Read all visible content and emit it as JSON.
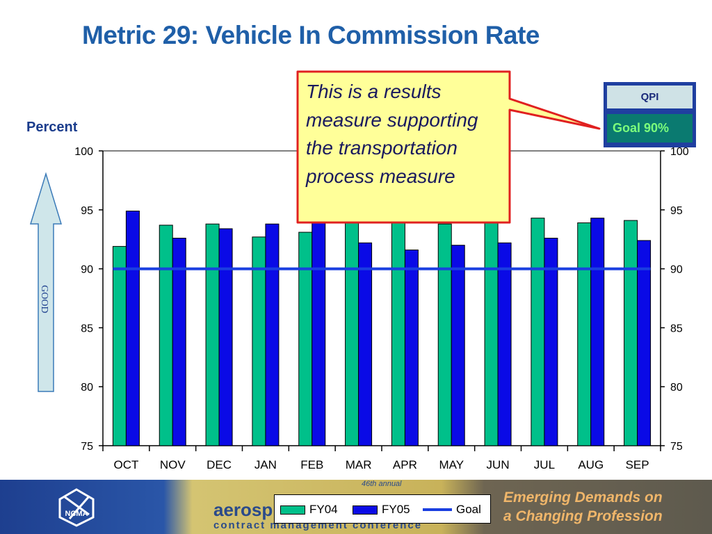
{
  "slide": {
    "title": "Metric 29:  Vehicle In Commission Rate",
    "callout": "This is a results measure supporting the transportation process measure",
    "qpi_label": "QPI",
    "goal_label": "Goal 90%",
    "good_label": "GOOD",
    "footer": {
      "conference_line1": "aerosp",
      "conference_line2": "contract management conference",
      "annual": "46th annual",
      "tagline1": "Emerging Demands on",
      "tagline2": "a Changing Profession",
      "logo_text": "NCMA"
    }
  },
  "chart_data": {
    "type": "bar",
    "ylabel": "Percent",
    "xlabel": "",
    "ylim": [
      75,
      100
    ],
    "yticks": [
      75,
      80,
      85,
      90,
      95,
      100
    ],
    "categories": [
      "OCT",
      "NOV",
      "DEC",
      "JAN",
      "FEB",
      "MAR",
      "APR",
      "MAY",
      "JUN",
      "JUL",
      "AUG",
      "SEP"
    ],
    "series": [
      {
        "name": "FY04",
        "color": "#00c08a",
        "values": [
          91.9,
          93.7,
          93.8,
          92.7,
          93.1,
          94.0,
          94.0,
          93.8,
          94.0,
          94.3,
          93.9,
          94.1
        ]
      },
      {
        "name": "FY05",
        "color": "#0a0ae6",
        "values": [
          94.9,
          92.6,
          93.4,
          93.8,
          94.0,
          92.2,
          91.6,
          92.0,
          92.2,
          92.6,
          94.3,
          92.4
        ]
      }
    ],
    "goal": {
      "name": "Goal",
      "value": 90,
      "color": "#1a3fe0"
    },
    "grid": false,
    "legend_position": "bottom"
  }
}
